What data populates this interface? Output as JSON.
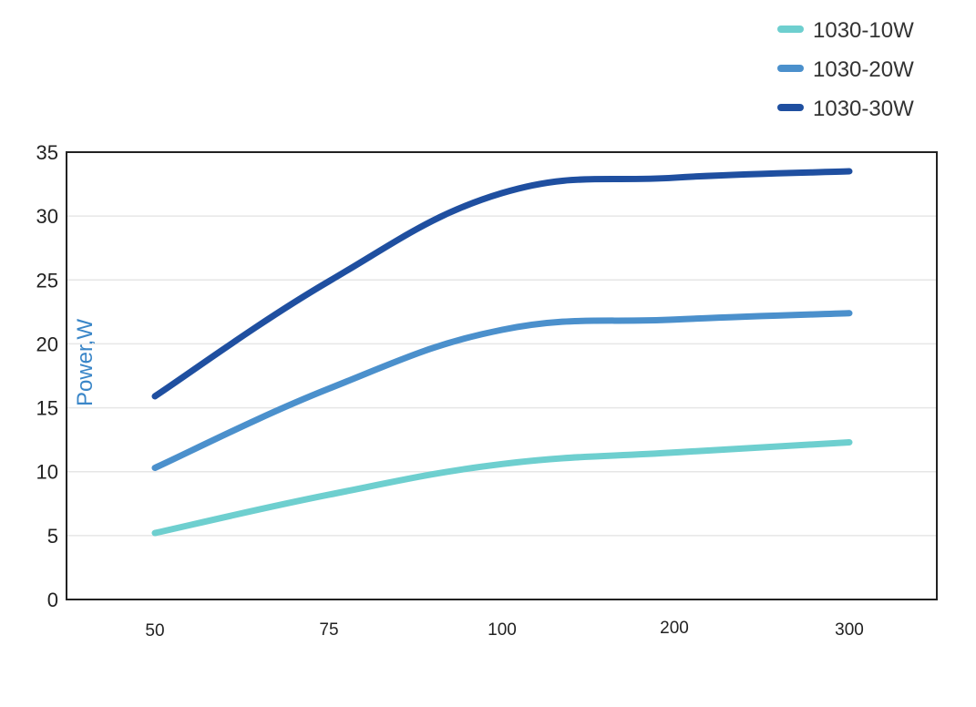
{
  "chart_data": {
    "type": "line",
    "title": "",
    "xlabel": "",
    "ylabel": "Power,W",
    "categories": [
      "50",
      "75",
      "100",
      "200",
      "300"
    ],
    "ylim": [
      0,
      35
    ],
    "yticks": [
      0,
      5,
      10,
      15,
      20,
      25,
      30,
      35
    ],
    "grid": true,
    "legend_position": "top-right",
    "series": [
      {
        "name": "1030-10W",
        "color": "#6ecfcf",
        "values": [
          5.2,
          8.2,
          10.6,
          11.5,
          12.3
        ]
      },
      {
        "name": "1030-20W",
        "color": "#4b90cc",
        "values": [
          10.3,
          16.5,
          21.1,
          21.9,
          22.4
        ]
      },
      {
        "name": "1030-30W",
        "color": "#1f4fa0",
        "values": [
          15.9,
          24.9,
          31.8,
          33.0,
          33.5
        ]
      }
    ],
    "colors": {
      "ylabel": "#3a86c8",
      "axis": "#222222",
      "grid": "#e6e6e6"
    }
  }
}
